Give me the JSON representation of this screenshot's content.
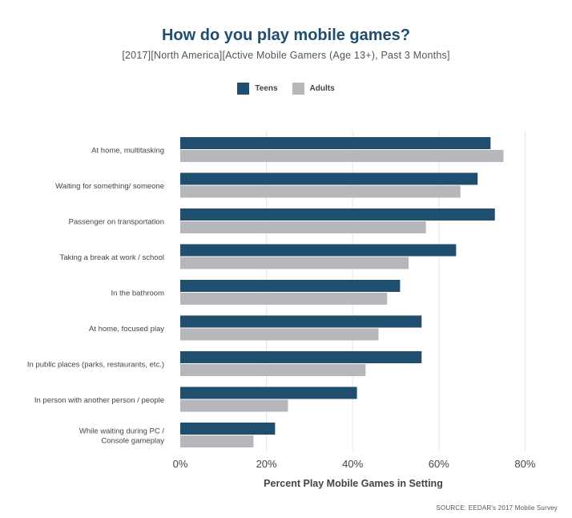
{
  "chart_data": {
    "type": "bar",
    "orientation": "horizontal",
    "title": "How do you play mobile games?",
    "subtitle": "[2017][North America][Active Mobile Gamers (Age 13+), Past 3 Months]",
    "categories": [
      [
        "At home, multitasking"
      ],
      [
        "Waiting for something/ someone"
      ],
      [
        "Passenger on transportation"
      ],
      [
        "Taking a break at work / school"
      ],
      [
        "In the bathroom"
      ],
      [
        "At home, focused play"
      ],
      [
        "In public places (parks, restaurants, etc.)"
      ],
      [
        "In person with another person / people"
      ],
      [
        "While waiting during PC /",
        "Console gameplay"
      ]
    ],
    "series": [
      {
        "name": "Teens",
        "color": "#1f4e6e",
        "values": [
          72,
          69,
          73,
          64,
          51,
          56,
          56,
          41,
          22
        ]
      },
      {
        "name": "Adults",
        "color": "#b6b7bb",
        "values": [
          75,
          65,
          57,
          53,
          48,
          46,
          43,
          25,
          17
        ]
      }
    ],
    "xlim": [
      0,
      80
    ],
    "xticks": [
      "0%",
      "20%",
      "40%",
      "60%",
      "80%"
    ],
    "xtick_values": [
      0,
      20,
      40,
      60,
      80
    ],
    "xlabel": "Percent Play Mobile Games in Setting",
    "ylabel": "",
    "legend_position": "top-center",
    "grid": true,
    "source": "SOURCE: EEDAR's 2017 Mobile Survey"
  }
}
